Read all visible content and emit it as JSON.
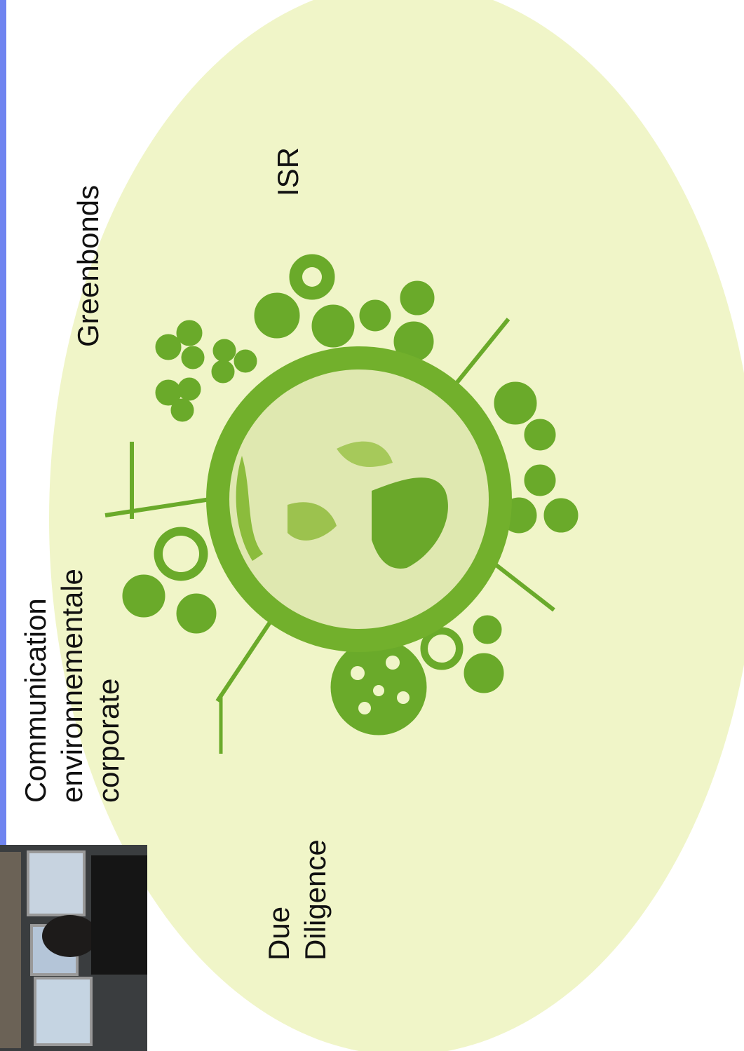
{
  "labels": {
    "greenbonds": "Greenbonds",
    "isr": "ISR",
    "communication": [
      "Communication",
      "environnementale",
      "corporate"
    ],
    "due_diligence": [
      "Due",
      "Diligence"
    ]
  }
}
